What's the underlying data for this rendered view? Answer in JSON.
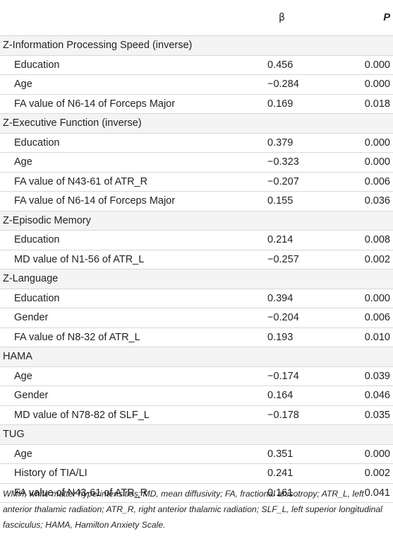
{
  "header": {
    "col_beta": "β",
    "col_p": "P"
  },
  "groups": [
    {
      "title": "Z-Information Processing Speed (inverse)",
      "rows": [
        {
          "label": "Education",
          "beta": "0.456",
          "p": "0.000"
        },
        {
          "label": "Age",
          "beta": "−0.284",
          "p": "0.000"
        },
        {
          "label": "FA value of N6-14 of Forceps Major",
          "beta": "0.169",
          "p": "0.018"
        }
      ]
    },
    {
      "title": "Z-Executive Function (inverse)",
      "rows": [
        {
          "label": "Education",
          "beta": "0.379",
          "p": "0.000"
        },
        {
          "label": "Age",
          "beta": "−0.323",
          "p": "0.000"
        },
        {
          "label": "FA value of N43-61 of ATR_R",
          "beta": "−0.207",
          "p": "0.006"
        },
        {
          "label": "FA value of N6-14 of Forceps Major",
          "beta": "0.155",
          "p": "0.036"
        }
      ]
    },
    {
      "title": "Z-Episodic Memory",
      "rows": [
        {
          "label": "Education",
          "beta": "0.214",
          "p": "0.008"
        },
        {
          "label": "MD value of N1-56 of ATR_L",
          "beta": "−0.257",
          "p": "0.002"
        }
      ]
    },
    {
      "title": "Z-Language",
      "rows": [
        {
          "label": "Education",
          "beta": "0.394",
          "p": "0.000"
        },
        {
          "label": "Gender",
          "beta": "−0.204",
          "p": "0.006"
        },
        {
          "label": "FA value of N8-32 of ATR_L",
          "beta": "0.193",
          "p": "0.010"
        }
      ]
    },
    {
      "title": "HAMA",
      "rows": [
        {
          "label": "Age",
          "beta": "−0.174",
          "p": "0.039"
        },
        {
          "label": "Gender",
          "beta": "0.164",
          "p": "0.046"
        },
        {
          "label": "MD value of N78-82 of SLF_L",
          "beta": "−0.178",
          "p": "0.035"
        }
      ]
    },
    {
      "title": "TUG",
      "rows": [
        {
          "label": "Age",
          "beta": "0.351",
          "p": "0.000"
        },
        {
          "label": "History of TIA/LI",
          "beta": "0.241",
          "p": "0.002"
        },
        {
          "label": "FA value of N43-61 of ATR_R",
          "beta": "0.161",
          "p": "0.041"
        }
      ]
    }
  ],
  "footnote": "WMH, white matter hyperintensities; MD, mean diffusivity; FA, fractional anisotropy; ATR_L, left anterior thalamic radiation; ATR_R, right anterior thalamic radiation; SLF_L, left superior longitudinal fasciculus; HAMA, Hamilton Anxiety Scale."
}
